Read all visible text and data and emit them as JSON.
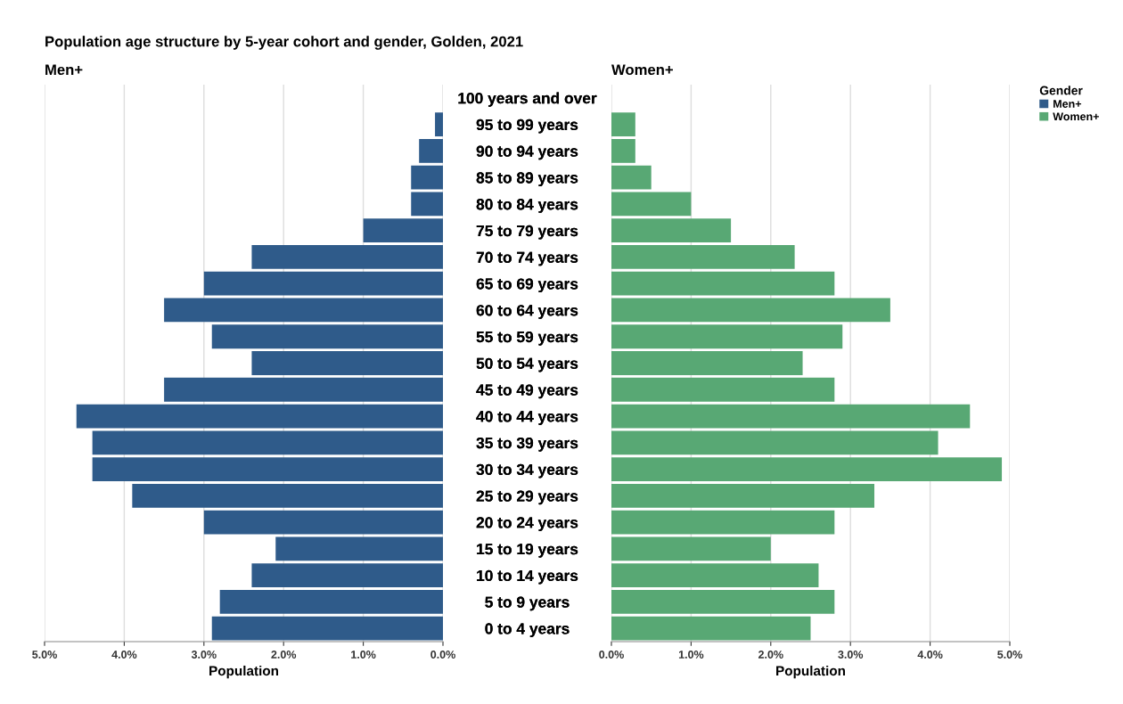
{
  "chart_data": [
    {
      "type": "bar",
      "orientation": "horizontal",
      "title": "Population age structure by 5-year cohort and gender, Golden, 2021",
      "subtitle": "Men+",
      "xlabel": "Population",
      "categories": [
        "100 years and over",
        "95 to 99 years",
        "90 to 94 years",
        "85 to 89 years",
        "80 to 84 years",
        "75 to 79 years",
        "70 to 74 years",
        "65 to 69 years",
        "60 to 64 years",
        "55 to 59 years",
        "50 to 54 years",
        "45 to 49 years",
        "40 to 44 years",
        "35 to 39 years",
        "30 to 34 years",
        "25 to 29 years",
        "20 to 24 years",
        "15 to 19 years",
        "10 to 14 years",
        "5 to 9 years",
        "0 to 4 years"
      ],
      "series": [
        {
          "name": "Men+",
          "color": "#2f5b8a",
          "values": [
            0,
            0.1,
            0.3,
            0.4,
            0.4,
            1.0,
            2.4,
            3.0,
            3.5,
            2.9,
            2.4,
            3.5,
            4.6,
            4.4,
            4.4,
            3.9,
            3.0,
            2.1,
            2.4,
            2.8,
            2.9
          ]
        }
      ],
      "xlim": [
        5,
        0
      ],
      "xticks": [
        {
          "value": 5,
          "label": "5.0%"
        },
        {
          "value": 4,
          "label": "4.0%"
        },
        {
          "value": 3,
          "label": "3.0%"
        },
        {
          "value": 2,
          "label": "2.0%"
        },
        {
          "value": 1,
          "label": "1.0%"
        },
        {
          "value": 0,
          "label": "0.0%"
        }
      ],
      "grid": "x"
    },
    {
      "type": "bar",
      "orientation": "horizontal",
      "subtitle": "Women+",
      "xlabel": "Population",
      "categories": [
        "100 years and over",
        "95 to 99 years",
        "90 to 94 years",
        "85 to 89 years",
        "80 to 84 years",
        "75 to 79 years",
        "70 to 74 years",
        "65 to 69 years",
        "60 to 64 years",
        "55 to 59 years",
        "50 to 54 years",
        "45 to 49 years",
        "40 to 44 years",
        "35 to 39 years",
        "30 to 34 years",
        "25 to 29 years",
        "20 to 24 years",
        "15 to 19 years",
        "10 to 14 years",
        "5 to 9 years",
        "0 to 4 years"
      ],
      "series": [
        {
          "name": "Women+",
          "color": "#58a874",
          "values": [
            0,
            0.3,
            0.3,
            0.5,
            1.0,
            1.5,
            2.3,
            2.8,
            3.5,
            2.9,
            2.4,
            2.8,
            4.5,
            4.1,
            4.9,
            3.3,
            2.8,
            2.0,
            2.6,
            2.8,
            2.5
          ]
        }
      ],
      "xlim": [
        0,
        5
      ],
      "xticks": [
        {
          "value": 0,
          "label": "0.0%"
        },
        {
          "value": 1,
          "label": "1.0%"
        },
        {
          "value": 2,
          "label": "2.0%"
        },
        {
          "value": 3,
          "label": "3.0%"
        },
        {
          "value": 4,
          "label": "4.0%"
        },
        {
          "value": 5,
          "label": "5.0%"
        }
      ],
      "grid": "x",
      "legend": "top right",
      "legend_title": "Gender"
    }
  ]
}
